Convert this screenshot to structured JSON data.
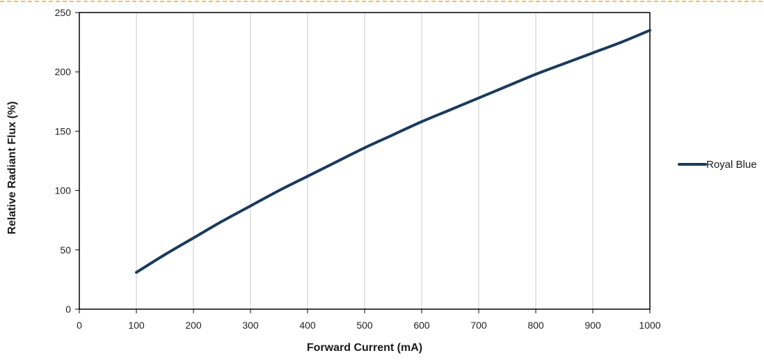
{
  "chart_data": {
    "type": "line",
    "xlabel": "Forward Current (mA)",
    "ylabel": "Relative Radiant Flux (%)",
    "xlim": [
      0,
      1000
    ],
    "ylim": [
      0,
      250
    ],
    "x_ticks": [
      0,
      100,
      200,
      300,
      400,
      500,
      600,
      700,
      800,
      900,
      1000
    ],
    "y_ticks": [
      0,
      50,
      100,
      150,
      200,
      250
    ],
    "grid": "vertical",
    "legend_position": "right",
    "series": [
      {
        "name": "Royal Blue",
        "color": "#1b3a5c",
        "x": [
          100,
          150,
          200,
          250,
          300,
          350,
          400,
          450,
          500,
          550,
          600,
          650,
          700,
          750,
          800,
          850,
          900,
          950,
          1000
        ],
        "y": [
          31,
          46,
          60,
          74,
          87,
          100,
          112,
          124,
          136,
          147,
          158,
          168,
          178,
          188,
          198,
          207,
          216,
          225,
          235
        ]
      }
    ]
  },
  "colors": {
    "top_dashed_border": "#f2c14e",
    "grid": "#c8c8c8",
    "axis": "#000000"
  }
}
